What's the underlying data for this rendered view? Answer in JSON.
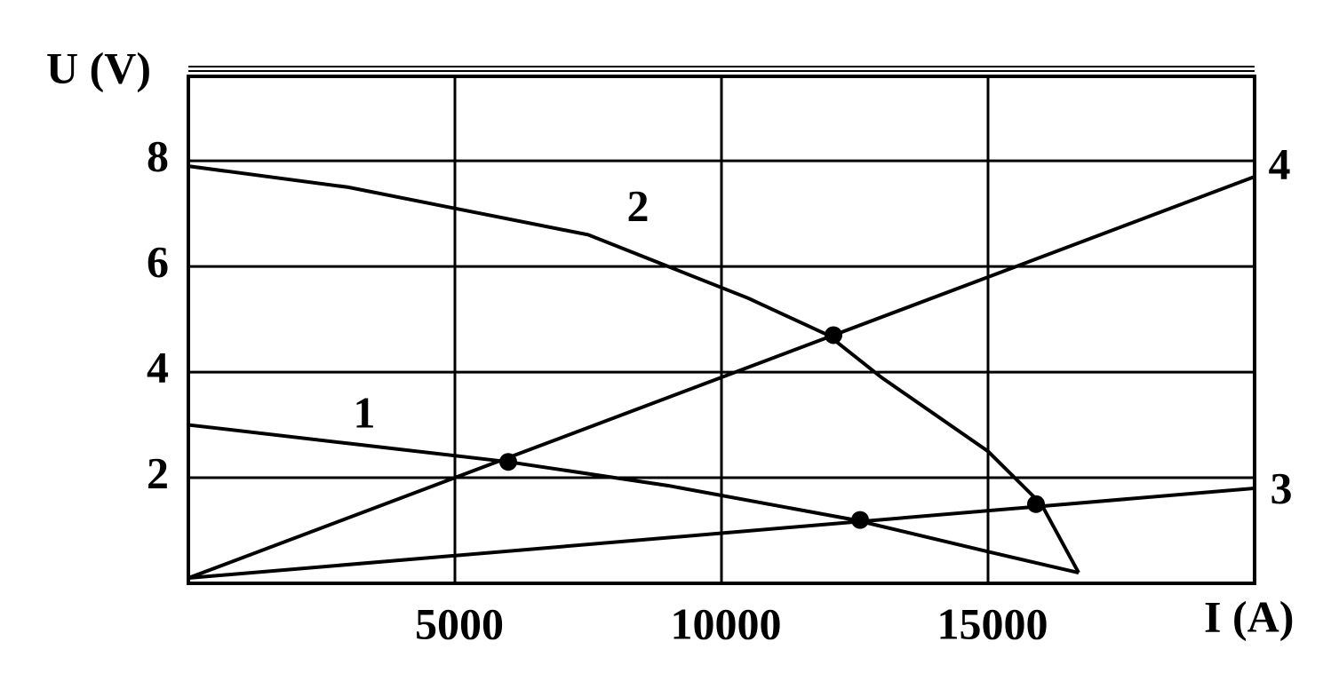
{
  "chart_data": {
    "type": "line",
    "ylabel": "U (V)",
    "xlabel": "I (A)",
    "xlim": [
      0,
      20000
    ],
    "xticks": [
      5000,
      10000,
      15000
    ],
    "ylim": [
      0,
      9.6
    ],
    "yticks": [
      2,
      4,
      6,
      8
    ],
    "grid": true,
    "series": [
      {
        "name": "1",
        "color": "#000000",
        "x": [
          0,
          3000,
          6000,
          9000,
          12500,
          15000,
          16700
        ],
        "values": [
          3.0,
          2.65,
          2.3,
          1.85,
          1.2,
          0.6,
          0.2
        ]
      },
      {
        "name": "2",
        "color": "#000000",
        "x": [
          0,
          3000,
          5000,
          7500,
          9000,
          10500,
          12000,
          13000,
          15000,
          16000,
          16700
        ],
        "values": [
          7.9,
          7.5,
          7.1,
          6.6,
          6.0,
          5.4,
          4.7,
          3.9,
          2.5,
          1.5,
          0.2
        ]
      },
      {
        "name": "3",
        "color": "#000000",
        "x": [
          0,
          20000
        ],
        "values": [
          0.1,
          1.8
        ]
      },
      {
        "name": "4",
        "color": "#000000",
        "x": [
          0,
          20000
        ],
        "values": [
          0.1,
          7.7
        ]
      }
    ],
    "points": {
      "color": "#000000",
      "x": [
        6000,
        12100,
        12600,
        15900
      ],
      "values": [
        2.3,
        4.7,
        1.2,
        1.5
      ]
    }
  }
}
